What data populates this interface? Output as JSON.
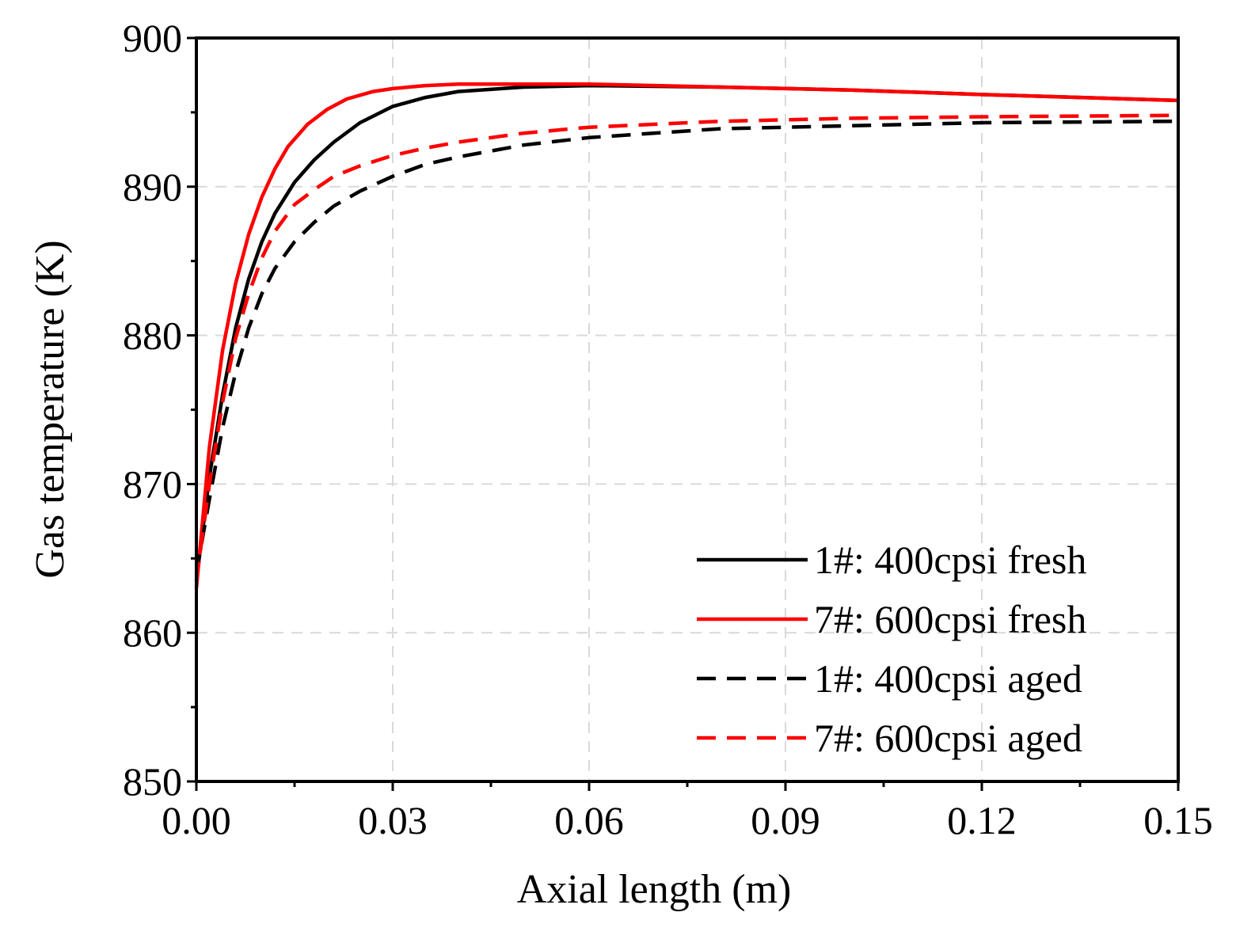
{
  "chart_data": {
    "type": "line",
    "title": "",
    "xlabel": "Axial length (m)",
    "ylabel": "Gas temperature (K)",
    "xlim": [
      0,
      0.15
    ],
    "ylim": [
      850,
      900
    ],
    "grid": true,
    "legend_position": "bottom-right",
    "x_ticks": [
      0,
      0.03,
      0.06,
      0.09,
      0.12,
      0.15
    ],
    "x_tick_labels": [
      "0.00",
      "0.03",
      "0.06",
      "0.09",
      "0.12",
      "0.15"
    ],
    "y_ticks": [
      850,
      860,
      870,
      880,
      890,
      900
    ],
    "y_tick_labels": [
      "850",
      "860",
      "870",
      "880",
      "890",
      "900"
    ],
    "series": [
      {
        "name": "1#: 400cpsi fresh",
        "color": "#000000",
        "style": "solid",
        "x": [
          0,
          0.002,
          0.004,
          0.006,
          0.008,
          0.01,
          0.012,
          0.015,
          0.018,
          0.021,
          0.025,
          0.03,
          0.035,
          0.04,
          0.05,
          0.06,
          0.08,
          0.1,
          0.12,
          0.15
        ],
        "y": [
          863.5,
          870.5,
          876.0,
          880.5,
          883.8,
          886.3,
          888.2,
          890.3,
          891.8,
          893.0,
          894.3,
          895.4,
          896.0,
          896.4,
          896.7,
          896.8,
          896.7,
          896.5,
          896.2,
          895.8
        ]
      },
      {
        "name": "7#: 600cpsi fresh",
        "color": "#ff0000",
        "style": "solid",
        "x": [
          0,
          0.002,
          0.004,
          0.006,
          0.008,
          0.01,
          0.012,
          0.014,
          0.017,
          0.02,
          0.023,
          0.027,
          0.03,
          0.035,
          0.04,
          0.05,
          0.06,
          0.08,
          0.1,
          0.12,
          0.15
        ],
        "y": [
          863.0,
          872.5,
          879.0,
          883.5,
          886.8,
          889.3,
          891.2,
          892.7,
          894.2,
          895.2,
          895.9,
          896.4,
          896.6,
          896.8,
          896.9,
          896.9,
          896.9,
          896.7,
          896.5,
          896.2,
          895.8
        ]
      },
      {
        "name": "1#: 400cpsi aged",
        "color": "#000000",
        "style": "dashed",
        "x": [
          0,
          0.002,
          0.004,
          0.006,
          0.008,
          0.01,
          0.012,
          0.015,
          0.018,
          0.021,
          0.025,
          0.03,
          0.035,
          0.04,
          0.05,
          0.06,
          0.08,
          0.1,
          0.12,
          0.15
        ],
        "y": [
          864.0,
          869.0,
          873.8,
          877.5,
          880.5,
          882.8,
          884.5,
          886.3,
          887.6,
          888.7,
          889.7,
          890.7,
          891.5,
          892.0,
          892.8,
          893.3,
          893.9,
          894.1,
          894.3,
          894.4
        ]
      },
      {
        "name": "7#: 600cpsi aged",
        "color": "#ff0000",
        "style": "dashed",
        "x": [
          0,
          0.002,
          0.004,
          0.006,
          0.008,
          0.01,
          0.012,
          0.015,
          0.018,
          0.021,
          0.025,
          0.03,
          0.035,
          0.04,
          0.05,
          0.06,
          0.08,
          0.1,
          0.12,
          0.15
        ],
        "y": [
          863.5,
          870.0,
          875.5,
          879.8,
          882.8,
          885.2,
          887.0,
          888.8,
          889.8,
          890.7,
          891.4,
          892.1,
          892.6,
          893.0,
          893.6,
          894.0,
          894.4,
          894.6,
          894.7,
          894.8
        ]
      }
    ]
  }
}
